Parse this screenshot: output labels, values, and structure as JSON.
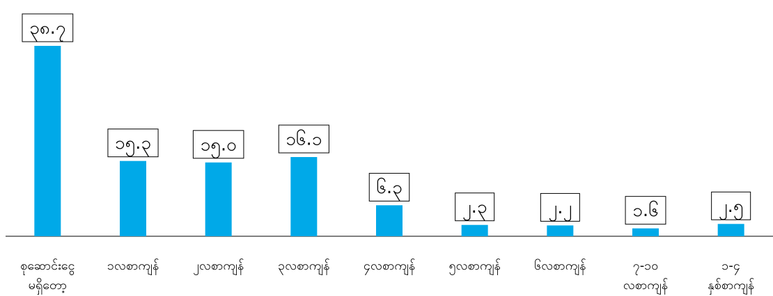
{
  "chart_data": {
    "type": "bar",
    "categories": [
      "စုဆောင်းငွေ\nမရှိတော့",
      "၁လစာကျန်",
      "၂လစာကျန်",
      "၃လစာကျန်",
      "၄လစာကျန်",
      "၅လစာကျန်",
      "၆လစာကျန်",
      "၇-၁၀\nလစာကျန်",
      "၁-၄\nနှစ်စာကျန်"
    ],
    "values": [
      38.7,
      15.3,
      15.0,
      16.1,
      6.3,
      2.3,
      2.2,
      1.6,
      2.5
    ],
    "value_labels": [
      "၃၈.၇",
      "၁၅.၃",
      "၁၅.၀",
      "၁၆.၁",
      "၆.၃",
      "၂.၃",
      "၂.၂",
      "၁.၆",
      "၂.၅"
    ],
    "color": "#00a9e8"
  }
}
